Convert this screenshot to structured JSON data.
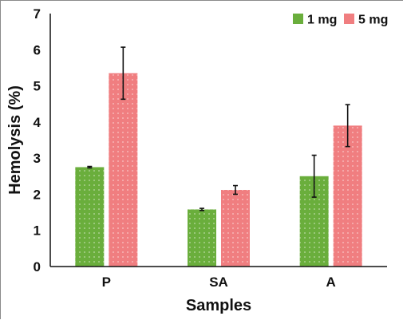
{
  "chart_data": {
    "type": "bar",
    "categories": [
      "P",
      "SA",
      "A"
    ],
    "series": [
      {
        "name": "1 mg",
        "values": [
          2.75,
          1.58,
          2.5
        ],
        "errors": [
          0.02,
          0.03,
          0.58
        ],
        "color": "#6aae3c"
      },
      {
        "name": "5 mg",
        "values": [
          5.35,
          2.12,
          3.9
        ],
        "errors": [
          0.72,
          0.12,
          0.58
        ],
        "color": "#f07e80"
      }
    ],
    "ylim": [
      0,
      7
    ],
    "yticks": [
      "0",
      "1",
      "2",
      "3",
      "4",
      "5",
      "6",
      "7"
    ],
    "xlabel": "Samples",
    "ylabel": "Hemolysis (%)",
    "legend_position": "top-right",
    "grid": false
  }
}
